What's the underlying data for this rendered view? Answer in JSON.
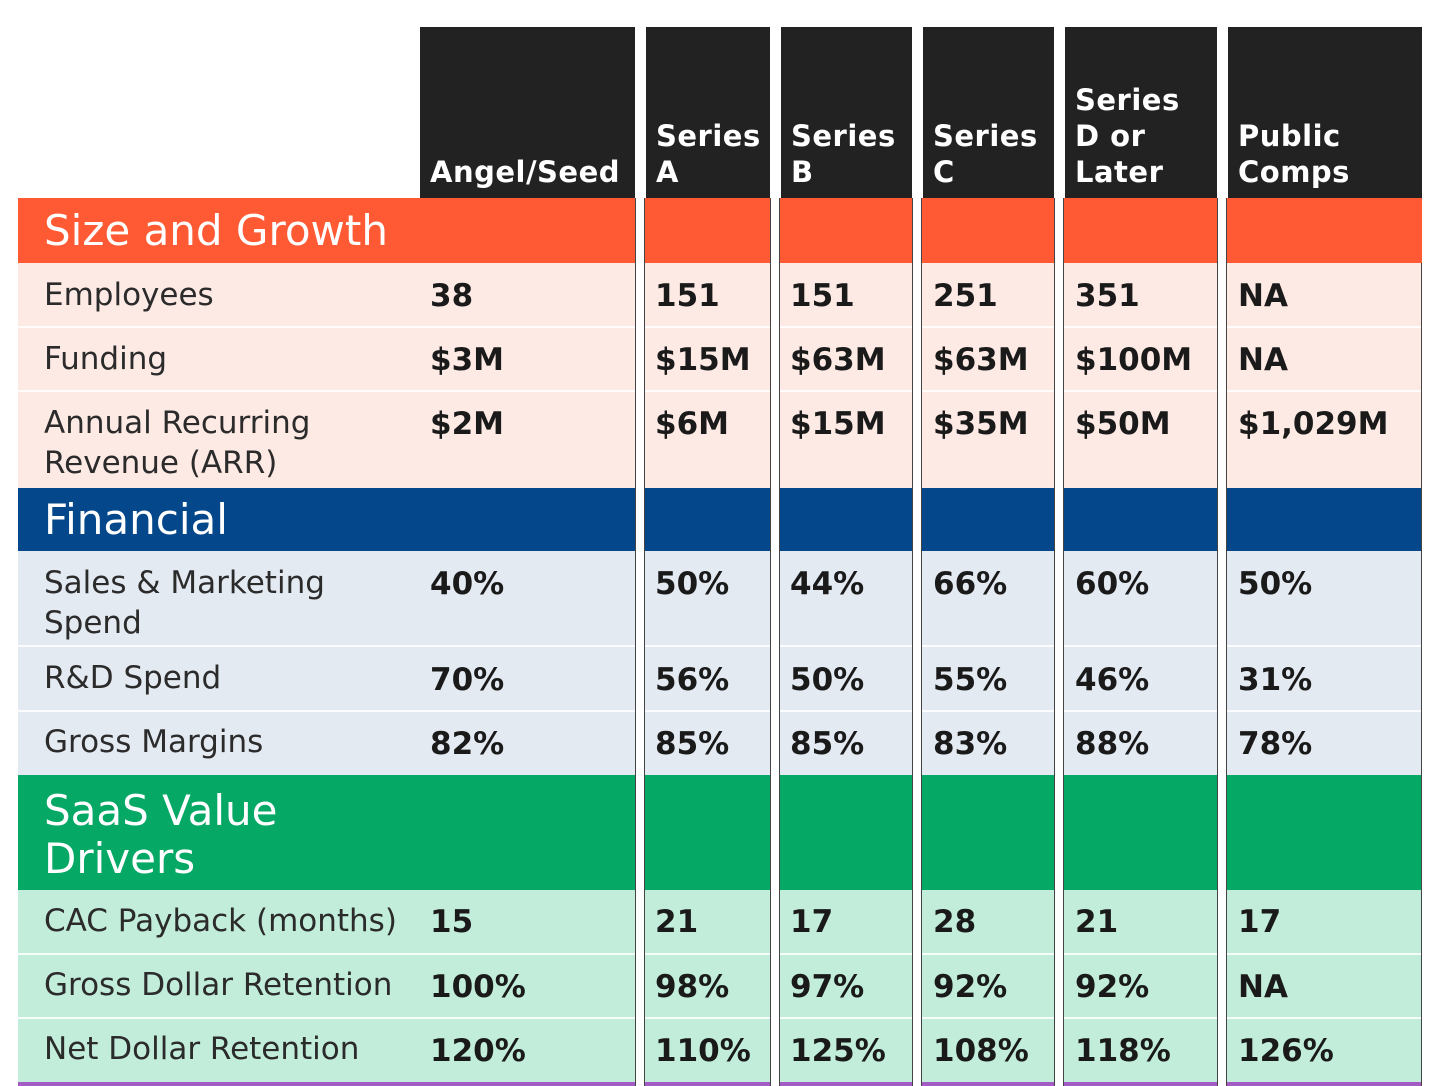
{
  "columns": [
    {
      "id": "angel",
      "label": "Angel/Seed"
    },
    {
      "id": "a",
      "label": "Series\nA"
    },
    {
      "id": "b",
      "label": "Series\nB"
    },
    {
      "id": "c",
      "label": "Series\nC"
    },
    {
      "id": "d",
      "label": "Series\nD or\nLater"
    },
    {
      "id": "public",
      "label": "Public\nComps"
    }
  ],
  "colors": {
    "header_bg": "#222222",
    "size_growth_band": "#FF5A33",
    "size_growth_rows": "#FDEAE5",
    "financial_band": "#04478A",
    "financial_rows": "#E4EAF2",
    "saas_band": "#06A865",
    "saas_rows": "#C2EDDA",
    "bottom_rule": "#A35CC4"
  },
  "sections": [
    {
      "title": "Size and Growth",
      "rows": [
        {
          "label": "Employees",
          "values": [
            "38",
            "151",
            "151",
            "251",
            "351",
            "NA"
          ]
        },
        {
          "label": "Funding",
          "values": [
            "$3M",
            "$15M",
            "$63M",
            "$63M",
            "$100M",
            "NA"
          ]
        },
        {
          "label": "Annual Recurring Revenue (ARR)",
          "values": [
            "$2M",
            "$6M",
            "$15M",
            "$35M",
            "$50M",
            "$1,029M"
          ]
        }
      ]
    },
    {
      "title": "Financial",
      "rows": [
        {
          "label": "Sales & Marketing Spend",
          "values": [
            "40%",
            "50%",
            "44%",
            "66%",
            "60%",
            "50%"
          ]
        },
        {
          "label": "R&D Spend",
          "values": [
            "70%",
            "56%",
            "50%",
            "55%",
            "46%",
            "31%"
          ]
        },
        {
          "label": "Gross Margins",
          "values": [
            "82%",
            "85%",
            "85%",
            "83%",
            "88%",
            "78%"
          ]
        }
      ]
    },
    {
      "title": "SaaS Value Drivers",
      "rows": [
        {
          "label": "CAC Payback (months)",
          "values": [
            "15",
            "21",
            "17",
            "28",
            "21",
            "17"
          ]
        },
        {
          "label": "Gross Dollar Retention",
          "values": [
            "100%",
            "98%",
            "97%",
            "92%",
            "92%",
            "NA"
          ]
        },
        {
          "label": "Net Dollar Retention",
          "values": [
            "120%",
            "110%",
            "125%",
            "108%",
            "118%",
            "126%"
          ]
        }
      ]
    }
  ]
}
